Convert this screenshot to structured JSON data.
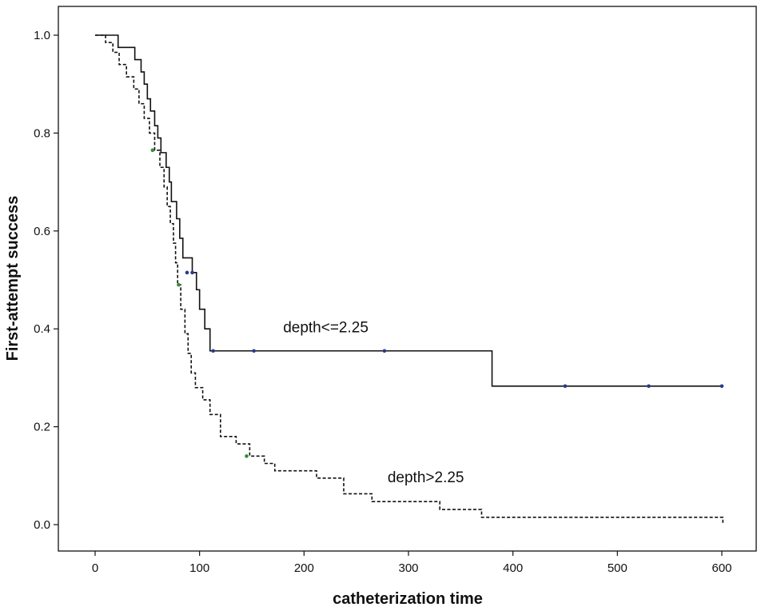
{
  "chart_data": {
    "type": "line",
    "title": "",
    "xlabel": "catheterization time",
    "ylabel": "First-attempt success",
    "xlim": [
      -10,
      630
    ],
    "ylim": [
      -0.05,
      1.05
    ],
    "x_ticks": [
      0,
      100,
      200,
      300,
      400,
      500,
      600
    ],
    "y_ticks": [
      0.0,
      0.2,
      0.4,
      0.6,
      0.8,
      1.0
    ],
    "x_tick_labels": [
      "0",
      "100",
      "200",
      "300",
      "400",
      "500",
      "600"
    ],
    "y_tick_labels": [
      "0.0",
      "0.2",
      "0.4",
      "0.6",
      "0.8",
      "1.0"
    ],
    "grid": false,
    "step": true,
    "series": [
      {
        "name": "depth<=2.25",
        "style": "solid",
        "color": "#111111",
        "marker_color": "#2b3a8c",
        "x": [
          0,
          22,
          38,
          44,
          47,
          50,
          53,
          57,
          60,
          63,
          68,
          71,
          73,
          78,
          81,
          84,
          93,
          97,
          100,
          105,
          110,
          380,
          600
        ],
        "y": [
          1.0,
          0.975,
          0.95,
          0.925,
          0.9,
          0.87,
          0.845,
          0.815,
          0.79,
          0.76,
          0.73,
          0.7,
          0.66,
          0.625,
          0.585,
          0.545,
          0.515,
          0.48,
          0.44,
          0.4,
          0.355,
          0.283,
          0.283
        ],
        "censored": [
          {
            "x": 88,
            "y": 0.515
          },
          {
            "x": 93,
            "y": 0.515
          },
          {
            "x": 113,
            "y": 0.355
          },
          {
            "x": 152,
            "y": 0.355
          },
          {
            "x": 277,
            "y": 0.355
          },
          {
            "x": 450,
            "y": 0.283
          },
          {
            "x": 530,
            "y": 0.283
          },
          {
            "x": 600,
            "y": 0.283
          }
        ]
      },
      {
        "name": "depth>2.25",
        "style": "dashed",
        "color": "#111111",
        "marker_color": "#3a8a3a",
        "x": [
          0,
          10,
          17,
          23,
          30,
          37,
          42,
          47,
          52,
          57,
          62,
          66,
          69,
          72,
          75,
          77,
          79,
          82,
          86,
          89,
          92,
          96,
          103,
          110,
          120,
          135,
          148,
          162,
          172,
          180,
          212,
          238,
          265,
          292,
          330,
          370,
          600,
          601
        ],
        "y": [
          1.0,
          0.985,
          0.965,
          0.94,
          0.915,
          0.89,
          0.86,
          0.83,
          0.8,
          0.765,
          0.73,
          0.69,
          0.65,
          0.615,
          0.575,
          0.535,
          0.49,
          0.44,
          0.39,
          0.35,
          0.31,
          0.28,
          0.255,
          0.225,
          0.18,
          0.165,
          0.14,
          0.125,
          0.11,
          0.11,
          0.095,
          0.063,
          0.047,
          0.047,
          0.031,
          0.015,
          0.015,
          0.0
        ],
        "censored": [
          {
            "x": 55,
            "y": 0.765
          },
          {
            "x": 80,
            "y": 0.49
          },
          {
            "x": 145,
            "y": 0.14
          }
        ]
      }
    ],
    "annotations": [
      {
        "text": "depth<=2.25",
        "x": 180,
        "y": 0.393
      },
      {
        "text": "depth>2.25",
        "x": 280,
        "y": 0.087
      }
    ]
  }
}
